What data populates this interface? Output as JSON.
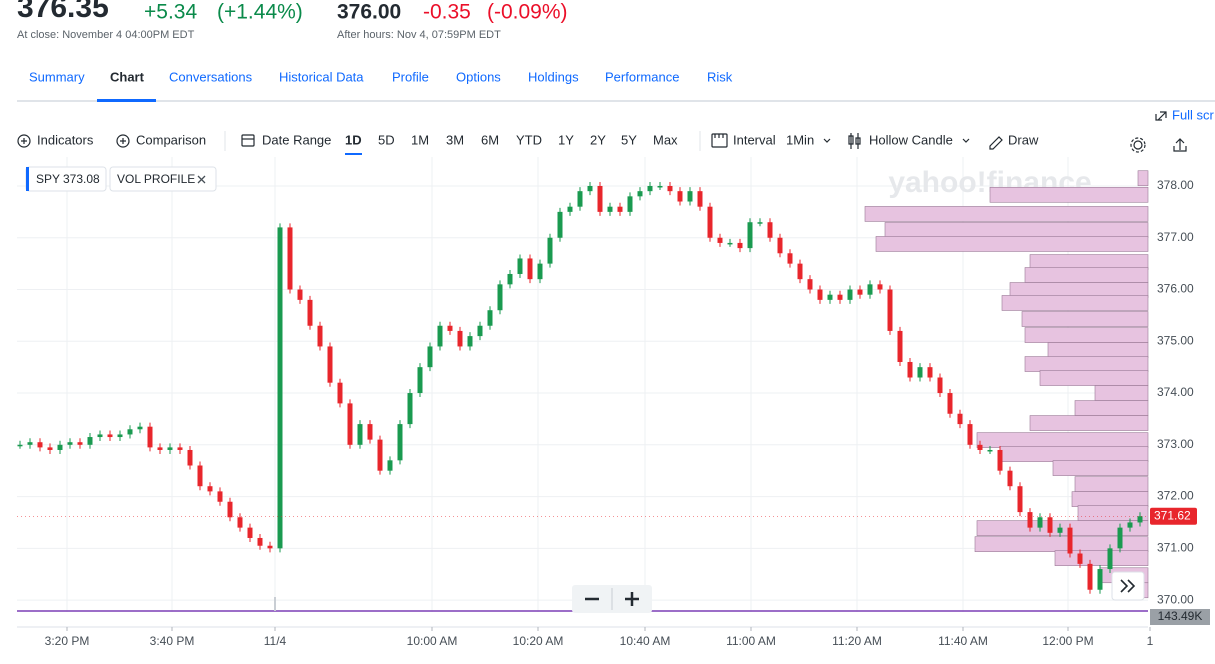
{
  "quote": {
    "price": "376.35",
    "change": "+5.34",
    "change_pct": "(+1.44%)",
    "close_note": "At close: November 4 04:00PM EDT",
    "after_price": "376.00",
    "after_change": "-0.35",
    "after_change_pct": "(-0.09%)",
    "after_note": "After hours: Nov 4, 07:59PM EDT"
  },
  "tabs": [
    "Summary",
    "Chart",
    "Conversations",
    "Historical Data",
    "Profile",
    "Options",
    "Holdings",
    "Performance",
    "Risk"
  ],
  "toolbar": {
    "indicators": "Indicators",
    "comparison": "Comparison",
    "date_range": "Date Range",
    "ranges": [
      "1D",
      "5D",
      "1M",
      "3M",
      "6M",
      "YTD",
      "1Y",
      "2Y",
      "5Y",
      "Max"
    ],
    "interval": "Interval",
    "interval_value": "1Min",
    "chart_style": "Hollow Candle",
    "draw": "Draw",
    "full_screen": "Full scr"
  },
  "chart_data": {
    "type": "candlestick",
    "symbol": "SPY",
    "symbol_value": 373.08,
    "overlay": "VOL PROFILE",
    "watermark": "yahoo!finance",
    "up_color": "#1a9a50",
    "down_color": "#e8262c",
    "profile_color": "#e7c3e0",
    "closes": [
      373.0,
      373.05,
      372.95,
      372.9,
      373.0,
      373.05,
      373.0,
      373.15,
      373.2,
      373.15,
      373.2,
      373.3,
      373.35,
      372.95,
      372.9,
      372.95,
      372.9,
      372.6,
      372.2,
      372.1,
      371.9,
      371.6,
      371.4,
      371.2,
      371.05,
      371.0,
      377.2,
      376.0,
      375.8,
      375.3,
      374.9,
      374.2,
      373.8,
      373.0,
      373.4,
      373.1,
      372.5,
      372.7,
      373.4,
      374.0,
      374.5,
      374.9,
      375.3,
      375.2,
      374.9,
      375.1,
      375.3,
      375.6,
      376.1,
      376.3,
      376.6,
      376.2,
      376.5,
      377.0,
      377.5,
      377.6,
      377.9,
      378.0,
      377.5,
      377.6,
      377.5,
      377.8,
      377.9,
      378.0,
      378.0,
      377.9,
      377.7,
      377.9,
      377.6,
      377.0,
      376.9,
      376.9,
      376.8,
      377.3,
      377.3,
      377.0,
      376.7,
      376.5,
      376.2,
      376.0,
      375.8,
      375.9,
      375.8,
      376.0,
      375.9,
      376.1,
      376.0,
      375.2,
      374.6,
      374.3,
      374.5,
      374.3,
      374.0,
      373.6,
      373.4,
      373.0,
      372.9,
      372.9,
      372.5,
      372.2,
      371.7,
      371.4,
      371.6,
      371.3,
      371.4,
      370.9,
      370.7,
      370.2,
      370.6,
      371.0,
      371.4,
      371.5,
      371.62
    ],
    "ylim": [
      369.77,
      378.56
    ],
    "yticks": [
      {
        "value": 370,
        "label": "370.00"
      },
      {
        "value": 371,
        "label": "371.00"
      },
      {
        "value": 372,
        "label": "372.00"
      },
      {
        "value": 373,
        "label": "373.00"
      },
      {
        "value": 374,
        "label": "374.00"
      },
      {
        "value": 375,
        "label": "375.00"
      },
      {
        "value": 376,
        "label": "376.00"
      },
      {
        "value": 377,
        "label": "377.00"
      },
      {
        "value": 378,
        "label": "378.00"
      }
    ],
    "xticks": [
      "3:20 PM",
      "3:40 PM",
      "11/4",
      "10:00 AM",
      "10:20 AM",
      "10:40 AM",
      "11:00 AM",
      "11:20 AM",
      "11:40 AM",
      "12:00 PM",
      "1"
    ],
    "grid": true,
    "volume_profile": {
      "prices": [
        378.15,
        377.83,
        377.46,
        377.15,
        376.88,
        376.53,
        376.28,
        375.99,
        375.74,
        375.43,
        375.12,
        374.83,
        374.56,
        374.29,
        374.0,
        373.71,
        373.42,
        373.09,
        372.82,
        372.55,
        372.24,
        371.95,
        371.68,
        371.39,
        371.08,
        370.81,
        370.48,
        370.19
      ],
      "values": [
        10,
        158,
        283,
        263,
        272,
        118,
        123,
        138,
        146,
        126,
        123,
        100,
        123,
        108,
        53,
        73,
        118,
        171,
        148,
        95,
        73,
        76,
        70,
        171,
        173,
        93,
        48,
        13
      ]
    },
    "volume_label": "143.49K"
  }
}
